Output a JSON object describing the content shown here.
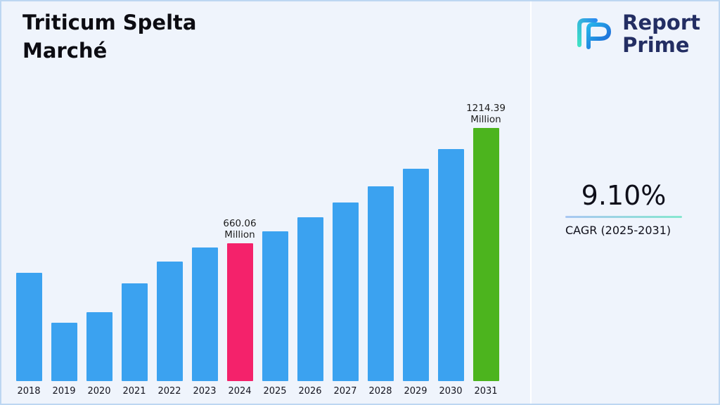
{
  "title": "Triticum Spelta\nMarché",
  "logo": {
    "line1": "Report",
    "line2": "Prime",
    "icon": "report-prime-logo-icon",
    "navy": "#232e63",
    "teal": "#3fe0c5",
    "blue": "#2b8cf0"
  },
  "cagr": {
    "value": "9.10%",
    "label": "CAGR (2025-2031)"
  },
  "chart_data": {
    "type": "bar",
    "title": "Triticum Spelta Marché",
    "xlabel": "",
    "ylabel": "",
    "unit": "Million",
    "grid": false,
    "legend": false,
    "ylim": [
      0,
      1300
    ],
    "categories": [
      "2018",
      "2019",
      "2020",
      "2021",
      "2022",
      "2023",
      "2024",
      "2025",
      "2026",
      "2027",
      "2028",
      "2029",
      "2030",
      "2031"
    ],
    "values": [
      520,
      280,
      330,
      470,
      575,
      640,
      660.06,
      720.13,
      785.66,
      857.15,
      935.15,
      1020.25,
      1113.09,
      1214.39
    ],
    "values_note": "2018-2023 estimated from bar heights; 2024 and 2031 labeled on chart; 2025-2030 follow 9.10% CAGR",
    "labeled_points": [
      {
        "year": "2024",
        "label": "660.06\nMillion"
      },
      {
        "year": "2031",
        "label": "1214.39\nMillion"
      }
    ],
    "colors": {
      "default": "#3BA2F0",
      "2024": "#F4226B",
      "2031": "#4CB41E"
    }
  }
}
